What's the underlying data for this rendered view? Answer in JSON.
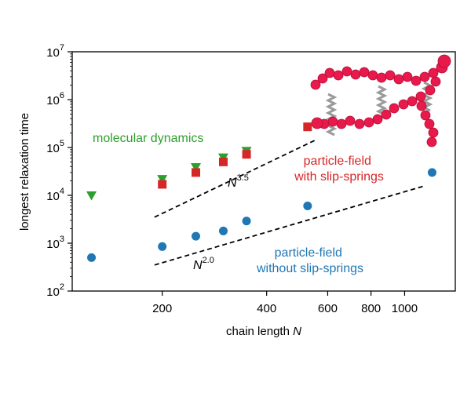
{
  "chart_data": {
    "type": "scatter",
    "xlabel": {
      "text": "chain length ",
      "var": "N"
    },
    "ylabel": "longest relaxation time",
    "xscale": "log",
    "yscale": "log",
    "xlim": [
      110,
      1400
    ],
    "ylim": [
      100,
      10000000
    ],
    "x_ticks": [
      {
        "value": 200,
        "label": "200"
      },
      {
        "value": 400,
        "label": "400"
      },
      {
        "value": 600,
        "label": "600"
      },
      {
        "value": 800,
        "label": "800"
      },
      {
        "value": 1000,
        "label": "1000"
      }
    ],
    "y_ticks": [
      {
        "value": 100,
        "base": "10",
        "exp": "2"
      },
      {
        "value": 1000,
        "base": "10",
        "exp": "3"
      },
      {
        "value": 10000,
        "base": "10",
        "exp": "4"
      },
      {
        "value": 100000,
        "base": "10",
        "exp": "5"
      },
      {
        "value": 1000000,
        "base": "10",
        "exp": "6"
      },
      {
        "value": 10000000,
        "base": "10",
        "exp": "7"
      }
    ],
    "series": [
      {
        "name": "molecular dynamics",
        "marker": "triangle-down",
        "color": "#2ca02c",
        "x": [
          125,
          200,
          250,
          300,
          350
        ],
        "y": [
          10000,
          22000,
          39000,
          62000,
          85000
        ]
      },
      {
        "name": "particle-field with slip-springs",
        "marker": "square",
        "color": "#d62728",
        "x": [
          200,
          250,
          300,
          350,
          525
        ],
        "y": [
          17000,
          30000,
          50000,
          72000,
          270000
        ]
      },
      {
        "name": "particle-field without slip-springs",
        "marker": "circle",
        "color": "#1f77b4",
        "x": [
          125,
          200,
          250,
          300,
          350,
          525,
          1200
        ],
        "y": [
          500,
          850,
          1400,
          1800,
          2900,
          6000,
          30000
        ]
      }
    ],
    "guide_lines": [
      {
        "exponent": "3.5",
        "x": [
          190,
          550
        ],
        "y": [
          3500,
          140000
        ]
      },
      {
        "exponent": "2.0",
        "x": [
          190,
          1150
        ],
        "y": [
          350,
          16000
        ]
      }
    ],
    "annotations": [
      {
        "text": "molecular dynamics",
        "color": "#2ca02c"
      },
      {
        "lines": [
          "particle-field",
          "with slip-springs"
        ],
        "color": "#d62728"
      },
      {
        "lines": [
          "particle-field",
          "without slip-springs"
        ],
        "color": "#1f77b4"
      },
      {
        "base": "N",
        "exp": "3.5"
      },
      {
        "base": "N",
        "exp": "2.0"
      }
    ]
  }
}
